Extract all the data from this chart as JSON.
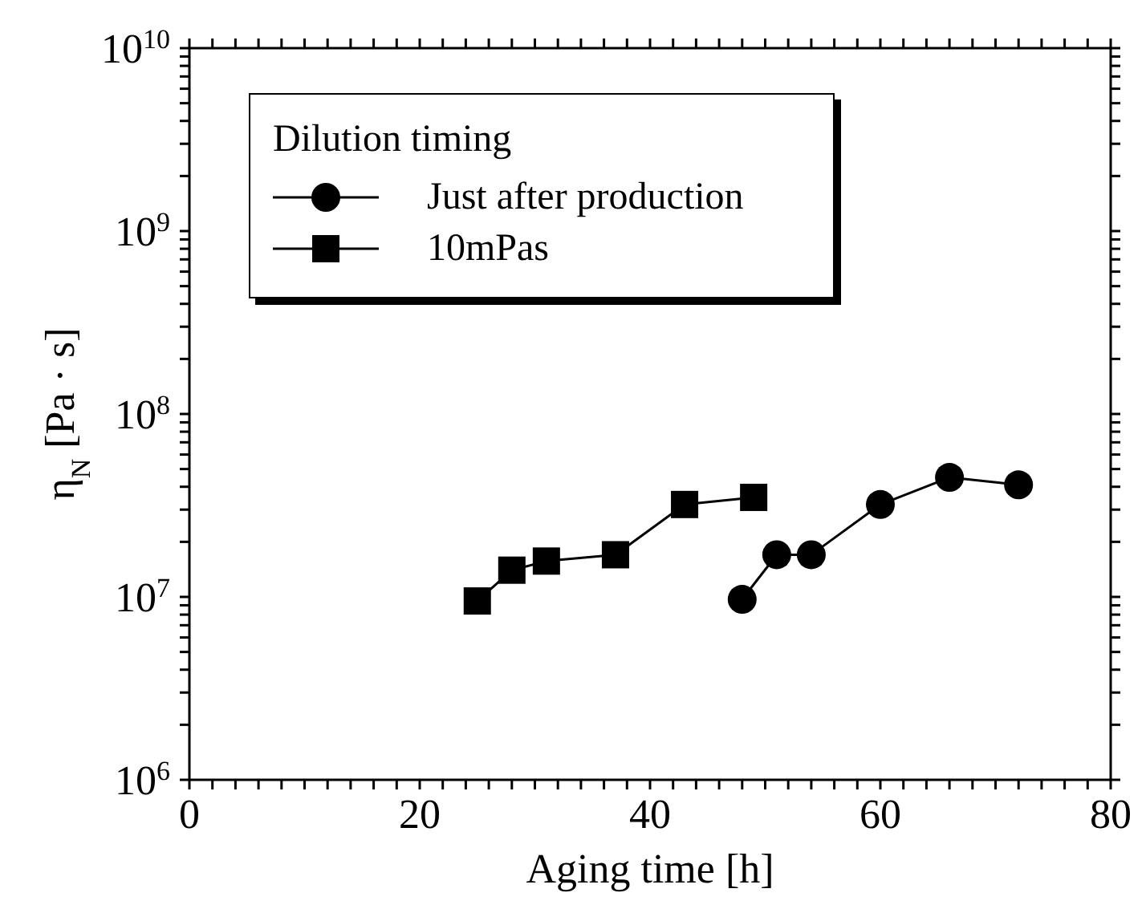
{
  "chart_data": {
    "type": "line",
    "xlabel": "Aging time [h]",
    "ylabel": "η$_{N}$ [Pa · s]",
    "legend_title": "Dilution timing",
    "legend": "top left",
    "log": "y",
    "xlim": [
      0,
      80
    ],
    "ylim": [
      1000000,
      10000000000
    ],
    "xticks": [
      0,
      {
        "value": 2,
        "label": null
      },
      {
        "value": 4,
        "label": null
      },
      {
        "value": 6,
        "label": null
      },
      {
        "value": 8,
        "label": null
      },
      {
        "value": 10,
        "label": null
      },
      {
        "value": 12,
        "label": null
      },
      {
        "value": 14,
        "label": null
      },
      {
        "value": 16,
        "label": null
      },
      {
        "value": 18,
        "label": null
      },
      20,
      {
        "value": 22,
        "label": null
      },
      {
        "value": 24,
        "label": null
      },
      {
        "value": 26,
        "label": null
      },
      {
        "value": 28,
        "label": null
      },
      {
        "value": 30,
        "label": null
      },
      {
        "value": 32,
        "label": null
      },
      {
        "value": 34,
        "label": null
      },
      {
        "value": 36,
        "label": null
      },
      {
        "value": 38,
        "label": null
      },
      40,
      {
        "value": 42,
        "label": null
      },
      {
        "value": 44,
        "label": null
      },
      {
        "value": 46,
        "label": null
      },
      {
        "value": 48,
        "label": null
      },
      {
        "value": 50,
        "label": null
      },
      {
        "value": 52,
        "label": null
      },
      {
        "value": 54,
        "label": null
      },
      {
        "value": 56,
        "label": null
      },
      {
        "value": 58,
        "label": null
      },
      60,
      {
        "value": 62,
        "label": null
      },
      {
        "value": 64,
        "label": null
      },
      {
        "value": 66,
        "label": null
      },
      {
        "value": 68,
        "label": null
      },
      {
        "value": 70,
        "label": null
      },
      {
        "value": 72,
        "label": null
      },
      {
        "value": 74,
        "label": null
      },
      {
        "value": 76,
        "label": null
      },
      {
        "value": 78,
        "label": null
      },
      80
    ],
    "yticks": [
      {
        "value": 1000000,
        "label": "10$^{6}$"
      },
      {
        "value": 2000000,
        "label": null
      },
      {
        "value": 3000000,
        "label": null
      },
      {
        "value": 4000000,
        "label": null
      },
      {
        "value": 5000000,
        "label": null
      },
      {
        "value": 6000000,
        "label": null
      },
      {
        "value": 7000000,
        "label": null
      },
      {
        "value": 8000000,
        "label": null
      },
      {
        "value": 9000000,
        "label": null
      },
      {
        "value": 10000000,
        "label": "10$^{7}$"
      },
      {
        "value": 20000000,
        "label": null
      },
      {
        "value": 30000000,
        "label": null
      },
      {
        "value": 40000000,
        "label": null
      },
      {
        "value": 50000000,
        "label": null
      },
      {
        "value": 60000000,
        "label": null
      },
      {
        "value": 70000000,
        "label": null
      },
      {
        "value": 80000000,
        "label": null
      },
      {
        "value": 90000000,
        "label": null
      },
      {
        "value": 100000000,
        "label": "10$^{8}$"
      },
      {
        "value": 200000000,
        "label": null
      },
      {
        "value": 300000000,
        "label": null
      },
      {
        "value": 400000000,
        "label": null
      },
      {
        "value": 500000000,
        "label": null
      },
      {
        "value": 600000000,
        "label": null
      },
      {
        "value": 700000000,
        "label": null
      },
      {
        "value": 800000000,
        "label": null
      },
      {
        "value": 900000000,
        "label": null
      },
      {
        "value": 1000000000,
        "label": "10$^{9}$"
      },
      {
        "value": 2000000000,
        "label": null
      },
      {
        "value": 3000000000,
        "label": null
      },
      {
        "value": 4000000000,
        "label": null
      },
      {
        "value": 5000000000,
        "label": null
      },
      {
        "value": 6000000000,
        "label": null
      },
      {
        "value": 7000000000,
        "label": null
      },
      {
        "value": 8000000000,
        "label": null
      },
      {
        "value": 9000000000,
        "label": null
      },
      {
        "value": 10000000000,
        "label": "10$^{10}$"
      }
    ],
    "series": [
      {
        "name": "Just after production",
        "color": "#000000",
        "marker": "circle",
        "x": [
          48,
          51,
          54,
          60,
          66,
          72
        ],
        "values": [
          9700000,
          17000000,
          17000000,
          32000000,
          45000000,
          41000000
        ]
      },
      {
        "name": "10mPas",
        "color": "#000000",
        "marker": "square",
        "x": [
          25,
          28,
          31,
          37,
          43,
          49
        ],
        "values": [
          9500000,
          14000000,
          15700000,
          17000000,
          32000000,
          35000000
        ]
      }
    ]
  }
}
